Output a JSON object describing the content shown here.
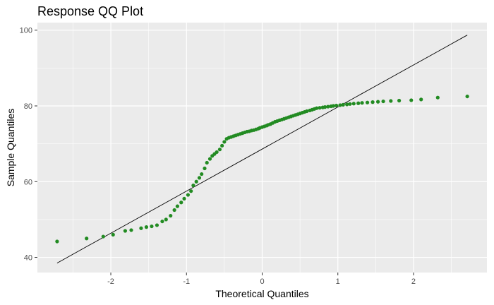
{
  "chart_data": {
    "type": "scatter",
    "title": "Response QQ Plot",
    "xlabel": "Theoretical Quantiles",
    "ylabel": "Sample Quantiles",
    "xlim": [
      -2.97,
      2.97
    ],
    "ylim": [
      36.0,
      102.0
    ],
    "x_ticks": [
      -2,
      -1,
      0,
      1,
      2
    ],
    "y_ticks": [
      40,
      60,
      80,
      100
    ],
    "grid": true,
    "point_color": "#228B22",
    "line_color": "#000000",
    "reference_line": {
      "x": [
        -2.71,
        2.71
      ],
      "y": [
        38.5,
        98.7
      ]
    },
    "points": {
      "x": [
        -2.71,
        -2.32,
        -2.1,
        -1.97,
        -1.81,
        -1.73,
        -1.6,
        -1.53,
        -1.46,
        -1.39,
        -1.32,
        -1.27,
        -1.21,
        -1.16,
        -1.12,
        -1.07,
        -1.03,
        -0.98,
        -0.94,
        -0.91,
        -0.87,
        -0.83,
        -0.8,
        -0.76,
        -0.73,
        -0.69,
        -0.66,
        -0.63,
        -0.6,
        -0.56,
        -0.53,
        -0.5,
        -0.47,
        -0.44,
        -0.41,
        -0.38,
        -0.35,
        -0.32,
        -0.29,
        -0.26,
        -0.23,
        -0.2,
        -0.17,
        -0.14,
        -0.11,
        -0.08,
        -0.05,
        -0.03,
        0.0,
        0.03,
        0.06,
        0.08,
        0.11,
        0.14,
        0.17,
        0.2,
        0.23,
        0.26,
        0.29,
        0.32,
        0.35,
        0.38,
        0.41,
        0.44,
        0.47,
        0.5,
        0.53,
        0.56,
        0.59,
        0.63,
        0.66,
        0.69,
        0.72,
        0.76,
        0.8,
        0.83,
        0.87,
        0.91,
        0.94,
        0.98,
        1.03,
        1.07,
        1.12,
        1.16,
        1.21,
        1.27,
        1.32,
        1.39,
        1.46,
        1.53,
        1.6,
        1.7,
        1.81,
        1.97,
        2.1,
        2.32,
        2.71
      ],
      "y": [
        44.2,
        45.0,
        45.5,
        46.0,
        47.0,
        47.2,
        47.7,
        48.0,
        48.2,
        48.5,
        49.5,
        50.0,
        51.0,
        52.5,
        53.5,
        54.5,
        55.5,
        56.5,
        57.5,
        59.0,
        60.0,
        61.0,
        62.0,
        63.5,
        65.0,
        66.0,
        66.8,
        67.3,
        67.8,
        68.5,
        69.5,
        70.5,
        71.3,
        71.6,
        71.8,
        72.0,
        72.2,
        72.4,
        72.6,
        72.8,
        73.0,
        73.2,
        73.3,
        73.5,
        73.6,
        73.8,
        74.0,
        74.2,
        74.4,
        74.6,
        74.8,
        75.0,
        75.2,
        75.5,
        75.8,
        76.0,
        76.2,
        76.4,
        76.6,
        76.8,
        77.0,
        77.2,
        77.4,
        77.6,
        77.8,
        78.0,
        78.2,
        78.4,
        78.6,
        78.8,
        79.0,
        79.2,
        79.4,
        79.5,
        79.6,
        79.7,
        79.8,
        79.9,
        80.0,
        80.1,
        80.2,
        80.3,
        80.4,
        80.5,
        80.6,
        80.7,
        80.8,
        80.9,
        81.0,
        81.1,
        81.2,
        81.3,
        81.4,
        81.5,
        81.7,
        82.2,
        82.5
      ]
    }
  }
}
